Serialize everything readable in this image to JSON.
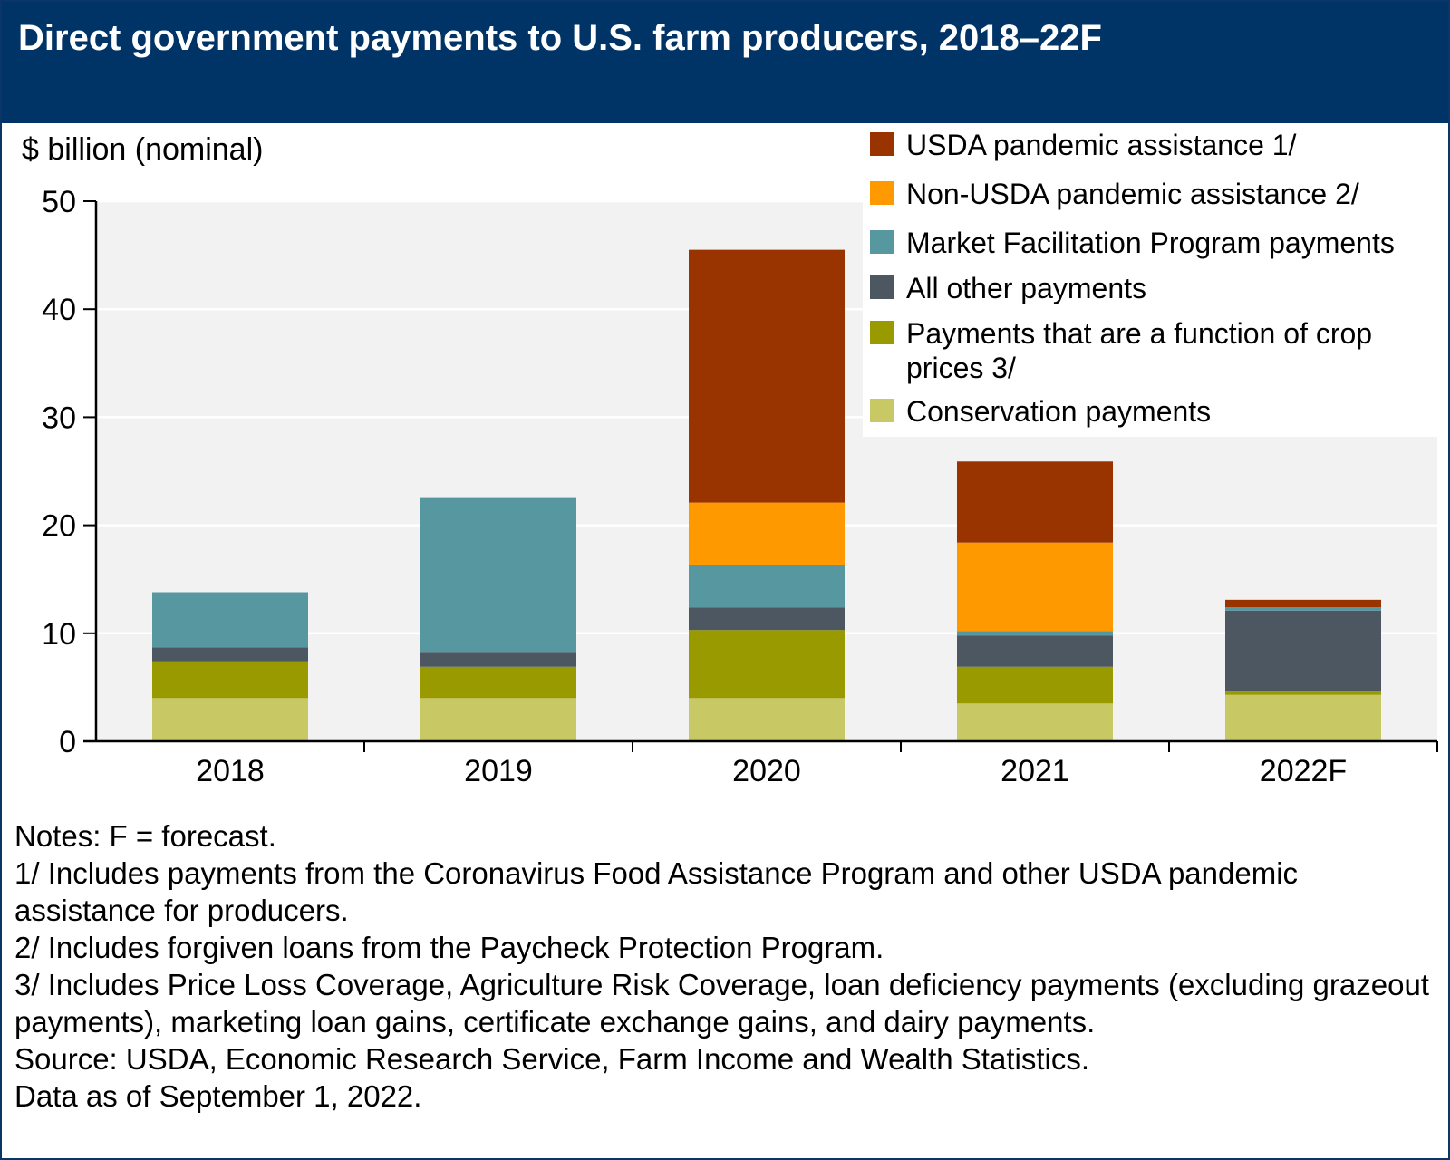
{
  "title": "Direct government payments to U.S. farm producers, 2018–22F",
  "colors": {
    "header_bg": "#003366",
    "plot_bg": "#f2f2f2"
  },
  "chart_data": {
    "type": "bar",
    "stacked": true,
    "ylabel": "$ billion (nominal)",
    "ylim": [
      0,
      50
    ],
    "yticks": [
      "0",
      "10",
      "20",
      "30",
      "40",
      "50"
    ],
    "categories": [
      "2018",
      "2019",
      "2020",
      "2021",
      "2022F"
    ],
    "series": [
      {
        "name": "Conservation payments",
        "color": "#c8c864",
        "values": [
          4.0,
          4.0,
          4.0,
          3.5,
          4.3
        ]
      },
      {
        "name": "Payments that are a function of crop prices 3/",
        "color": "#999900",
        "values": [
          3.4,
          2.9,
          6.3,
          3.4,
          0.3
        ]
      },
      {
        "name": "All other payments",
        "color": "#4d5761",
        "values": [
          1.3,
          1.3,
          2.1,
          2.9,
          7.5
        ]
      },
      {
        "name": "Market Facilitation Program payments",
        "color": "#5797a0",
        "values": [
          5.1,
          14.4,
          3.9,
          0.4,
          0.3
        ]
      },
      {
        "name": "Non-USDA pandemic assistance 2/",
        "color": "#ff9900",
        "values": [
          0,
          0,
          5.8,
          8.2,
          0
        ]
      },
      {
        "name": "USDA pandemic assistance 1/",
        "color": "#993300",
        "values": [
          0,
          0,
          23.4,
          7.5,
          0.7
        ]
      }
    ],
    "legend_position": "top-right",
    "grid": true
  },
  "notes": [
    "Notes: F = forecast.",
    "1/ Includes payments from the Coronavirus Food Assistance Program and other USDA pandemic assistance for producers.",
    "2/ Includes forgiven loans from the Paycheck Protection Program.",
    "3/ Includes Price Loss Coverage, Agriculture Risk Coverage, loan deficiency payments (excluding grazeout payments), marketing loan gains, certificate exchange gains, and dairy payments.",
    "Source: USDA, Economic Research Service, Farm Income and Wealth Statistics.",
    "Data as of September 1, 2022."
  ]
}
